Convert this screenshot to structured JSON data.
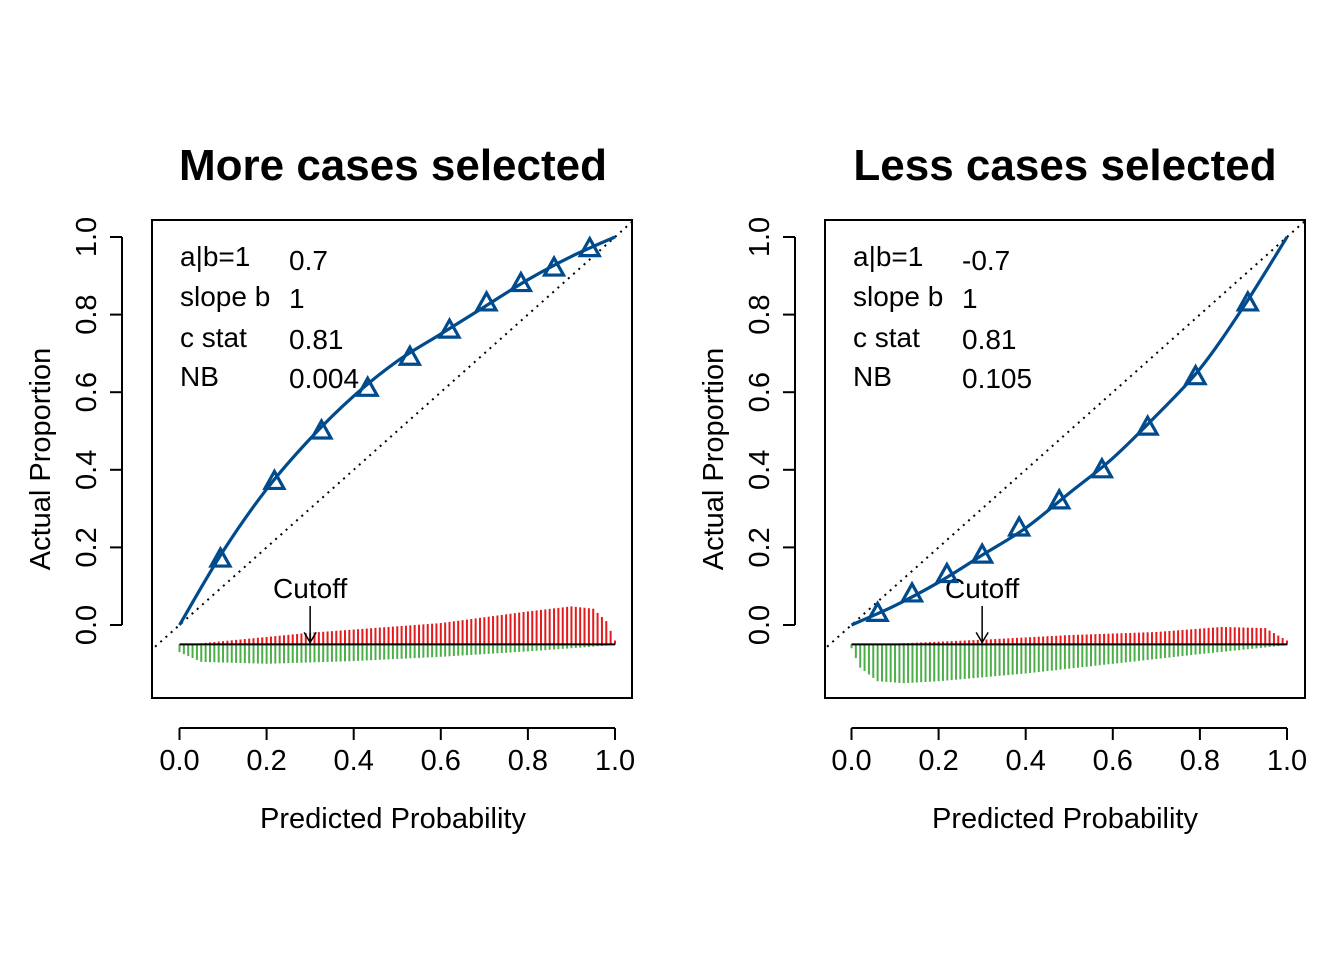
{
  "chart_data": [
    {
      "type": "line",
      "title": "More cases selected",
      "xlabel": "Predicted Probability",
      "ylabel": "Actual Proportion",
      "xlim": [
        0,
        1
      ],
      "ylim": [
        0,
        1
      ],
      "x_ticks": [
        "0.0",
        "0.2",
        "0.4",
        "0.6",
        "0.8",
        "1.0"
      ],
      "y_ticks": [
        "0.0",
        "0.2",
        "0.4",
        "0.6",
        "0.8",
        "1.0"
      ],
      "stats": [
        {
          "label": "a|b=1",
          "value": "0.7"
        },
        {
          "label": "slope b",
          "value": "1"
        },
        {
          "label": "c stat",
          "value": "0.81"
        },
        {
          "label": "NB",
          "value": "0.004"
        }
      ],
      "cutoff": {
        "label": "Cutoff",
        "x": 0.3
      },
      "curve": {
        "x": [
          0.0,
          0.1,
          0.2,
          0.3,
          0.4,
          0.5,
          0.6,
          0.7,
          0.8,
          0.9,
          1.0
        ],
        "y": [
          0.0,
          0.19,
          0.35,
          0.48,
          0.59,
          0.68,
          0.75,
          0.82,
          0.89,
          0.95,
          1.0
        ]
      },
      "grouped_points": {
        "x": [
          0.094,
          0.218,
          0.326,
          0.432,
          0.529,
          0.62,
          0.705,
          0.784,
          0.86,
          0.942
        ],
        "y": [
          0.17,
          0.37,
          0.5,
          0.61,
          0.69,
          0.76,
          0.83,
          0.88,
          0.92,
          0.97
        ]
      },
      "diagonal": true,
      "histogram": {
        "baseline": -0.05,
        "events_color": "#e41a1c",
        "nonevents_color": "#4daf4a",
        "events_height": [
          [
            0.0,
            0.0
          ],
          [
            0.05,
            0.003
          ],
          [
            0.3,
            0.03
          ],
          [
            0.6,
            0.055
          ],
          [
            0.8,
            0.085
          ],
          [
            0.9,
            0.098
          ],
          [
            0.95,
            0.092
          ],
          [
            0.98,
            0.06
          ],
          [
            1.0,
            0.01
          ]
        ],
        "nonevents_depth": [
          [
            0.0,
            0.02
          ],
          [
            0.05,
            0.045
          ],
          [
            0.2,
            0.05
          ],
          [
            0.4,
            0.043
          ],
          [
            0.6,
            0.032
          ],
          [
            0.8,
            0.018
          ],
          [
            0.95,
            0.006
          ],
          [
            1.0,
            0.001
          ]
        ]
      },
      "curve_color": "#004b8d",
      "diagonal_color": "#000000"
    },
    {
      "type": "line",
      "title": "Less cases selected",
      "xlabel": "Predicted Probability",
      "ylabel": "Actual Proportion",
      "xlim": [
        0,
        1
      ],
      "ylim": [
        0,
        1
      ],
      "x_ticks": [
        "0.0",
        "0.2",
        "0.4",
        "0.6",
        "0.8",
        "1.0"
      ],
      "y_ticks": [
        "0.0",
        "0.2",
        "0.4",
        "0.6",
        "0.8",
        "1.0"
      ],
      "stats": [
        {
          "label": "a|b=1",
          "value": "-0.7"
        },
        {
          "label": "slope b",
          "value": "1"
        },
        {
          "label": "c stat",
          "value": "0.81"
        },
        {
          "label": "NB",
          "value": "0.105"
        }
      ],
      "cutoff": {
        "label": "Cutoff",
        "x": 0.3
      },
      "curve": {
        "x": [
          0.0,
          0.1,
          0.2,
          0.3,
          0.4,
          0.5,
          0.6,
          0.7,
          0.8,
          0.9,
          1.0
        ],
        "y": [
          0.0,
          0.05,
          0.11,
          0.18,
          0.25,
          0.34,
          0.43,
          0.54,
          0.66,
          0.82,
          1.0
        ]
      },
      "grouped_points": {
        "x": [
          0.06,
          0.139,
          0.219,
          0.3,
          0.385,
          0.477,
          0.575,
          0.68,
          0.79,
          0.91
        ],
        "y": [
          0.03,
          0.08,
          0.13,
          0.18,
          0.25,
          0.32,
          0.4,
          0.51,
          0.64,
          0.83
        ]
      },
      "diagonal": true,
      "histogram": {
        "baseline": -0.05,
        "events_color": "#e41a1c",
        "nonevents_color": "#4daf4a",
        "events_height": [
          [
            0.0,
            0.0
          ],
          [
            0.1,
            0.002
          ],
          [
            0.3,
            0.012
          ],
          [
            0.5,
            0.024
          ],
          [
            0.7,
            0.032
          ],
          [
            0.85,
            0.045
          ],
          [
            0.95,
            0.042
          ],
          [
            1.0,
            0.01
          ]
        ],
        "nonevents_depth": [
          [
            0.0,
            0.01
          ],
          [
            0.02,
            0.06
          ],
          [
            0.06,
            0.095
          ],
          [
            0.12,
            0.1
          ],
          [
            0.2,
            0.095
          ],
          [
            0.4,
            0.075
          ],
          [
            0.6,
            0.05
          ],
          [
            0.8,
            0.025
          ],
          [
            0.95,
            0.008
          ],
          [
            1.0,
            0.002
          ]
        ]
      },
      "curve_color": "#004b8d",
      "diagonal_color": "#000000"
    }
  ]
}
